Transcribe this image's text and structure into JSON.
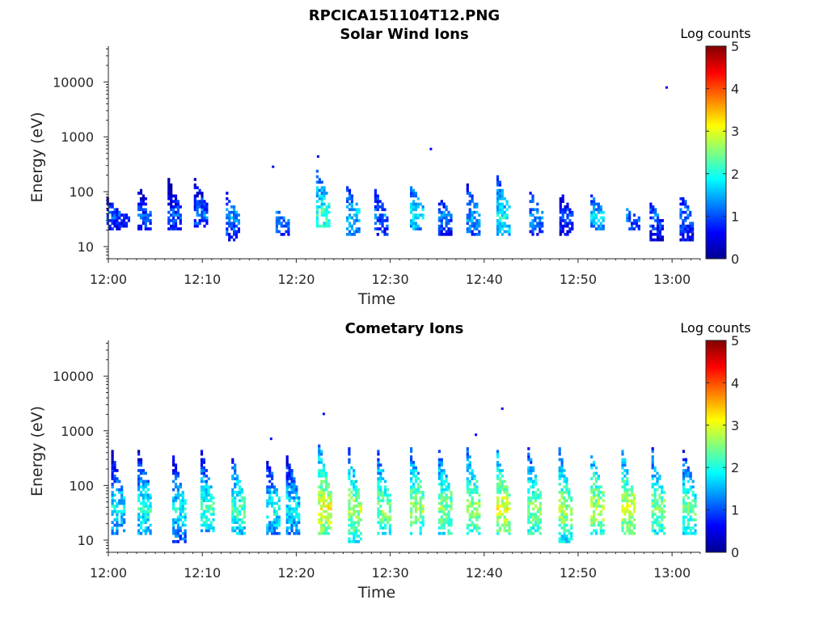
{
  "figure": {
    "title": "RPCICA151104T12.PNG"
  },
  "chart_data": [
    {
      "type": "heatmap",
      "title": "Solar Wind Ions",
      "xlabel": "Time",
      "ylabel": "Energy (eV)",
      "xlim": [
        "12:00",
        "13:03"
      ],
      "ylim": [
        6,
        45000
      ],
      "yscale": "log",
      "xticks": [
        "12:00",
        "12:10",
        "12:20",
        "12:30",
        "12:40",
        "12:50",
        "13:00"
      ],
      "yticks": [
        "10",
        "100",
        "1000",
        "10000"
      ],
      "colorbar": {
        "label": "Log counts",
        "min": 0,
        "max": 5,
        "ticks": [
          "0",
          "1",
          "2",
          "3",
          "4",
          "5"
        ]
      },
      "bursts": [
        {
          "t": 0.5,
          "e_low": 18,
          "e_high": 75,
          "peak": 1.5
        },
        {
          "t": 1.5,
          "e_low": 20,
          "e_high": 45,
          "peak": 1.3
        },
        {
          "t": 3.8,
          "e_low": 18,
          "e_high": 120,
          "peak": 1.4
        },
        {
          "t": 7.0,
          "e_low": 18,
          "e_high": 170,
          "peak": 1.4
        },
        {
          "t": 9.8,
          "e_low": 20,
          "e_high": 160,
          "peak": 1.6
        },
        {
          "t": 13.2,
          "e_low": 12,
          "e_high": 95,
          "peak": 1.8
        },
        {
          "t": 18.5,
          "e_low": 15,
          "e_high": 45,
          "peak": 1.7
        },
        {
          "t": 22.8,
          "e_low": 20,
          "e_high": 230,
          "peak": 2.6
        },
        {
          "t": 26.0,
          "e_low": 15,
          "e_high": 140,
          "peak": 2.0
        },
        {
          "t": 29.0,
          "e_low": 15,
          "e_high": 100,
          "peak": 1.6
        },
        {
          "t": 32.8,
          "e_low": 18,
          "e_high": 130,
          "peak": 2.2
        },
        {
          "t": 35.8,
          "e_low": 15,
          "e_high": 80,
          "peak": 1.6
        },
        {
          "t": 38.8,
          "e_low": 15,
          "e_high": 130,
          "peak": 1.9
        },
        {
          "t": 42.0,
          "e_low": 15,
          "e_high": 180,
          "peak": 2.3
        },
        {
          "t": 45.5,
          "e_low": 15,
          "e_high": 95,
          "peak": 1.7
        },
        {
          "t": 48.7,
          "e_low": 15,
          "e_high": 95,
          "peak": 1.4
        },
        {
          "t": 52.0,
          "e_low": 18,
          "e_high": 90,
          "peak": 2.0
        },
        {
          "t": 55.8,
          "e_low": 18,
          "e_high": 45,
          "peak": 1.6
        },
        {
          "t": 58.3,
          "e_low": 12,
          "e_high": 60,
          "peak": 1.5
        },
        {
          "t": 61.5,
          "e_low": 12,
          "e_high": 95,
          "peak": 1.6
        }
      ],
      "isolated": [
        {
          "t": 17.4,
          "e": 280,
          "value": 0.6
        },
        {
          "t": 22.2,
          "e": 430,
          "value": 0.5
        },
        {
          "t": 34.2,
          "e": 590,
          "value": 0.6
        },
        {
          "t": 59.3,
          "e": 7800,
          "value": 0.5
        }
      ]
    },
    {
      "type": "heatmap",
      "title": "Cometary Ions",
      "xlabel": "Time",
      "ylabel": "Energy (eV)",
      "xlim": [
        "12:00",
        "13:03"
      ],
      "ylim": [
        6,
        45000
      ],
      "yscale": "log",
      "xticks": [
        "12:00",
        "12:10",
        "12:20",
        "12:30",
        "12:40",
        "12:50",
        "13:00"
      ],
      "yticks": [
        "10",
        "100",
        "1000",
        "10000"
      ],
      "colorbar": {
        "label": "Log counts",
        "min": 0,
        "max": 5,
        "ticks": [
          "0",
          "1",
          "2",
          "3",
          "4",
          "5"
        ]
      },
      "bursts": [
        {
          "t": 1.0,
          "e_low": 12,
          "e_high": 400,
          "peak": 2.3
        },
        {
          "t": 3.8,
          "e_low": 12,
          "e_high": 500,
          "peak": 2.5
        },
        {
          "t": 7.5,
          "e_low": 8,
          "e_high": 350,
          "peak": 2.3
        },
        {
          "t": 10.5,
          "e_low": 12,
          "e_high": 400,
          "peak": 2.6
        },
        {
          "t": 13.8,
          "e_low": 12,
          "e_high": 350,
          "peak": 2.7
        },
        {
          "t": 17.5,
          "e_low": 12,
          "e_high": 300,
          "peak": 2.4
        },
        {
          "t": 19.6,
          "e_low": 12,
          "e_high": 350,
          "peak": 2.3
        },
        {
          "t": 23.0,
          "e_low": 12,
          "e_high": 600,
          "peak": 3.5
        },
        {
          "t": 26.2,
          "e_low": 8,
          "e_high": 450,
          "peak": 3.1
        },
        {
          "t": 29.3,
          "e_low": 12,
          "e_high": 400,
          "peak": 3.0
        },
        {
          "t": 32.8,
          "e_low": 12,
          "e_high": 500,
          "peak": 3.1
        },
        {
          "t": 35.8,
          "e_low": 12,
          "e_high": 450,
          "peak": 3.0
        },
        {
          "t": 38.8,
          "e_low": 12,
          "e_high": 500,
          "peak": 3.1
        },
        {
          "t": 42.0,
          "e_low": 12,
          "e_high": 400,
          "peak": 3.4
        },
        {
          "t": 45.3,
          "e_low": 12,
          "e_high": 450,
          "peak": 3.0
        },
        {
          "t": 48.6,
          "e_low": 8,
          "e_high": 450,
          "peak": 3.1
        },
        {
          "t": 52.0,
          "e_low": 12,
          "e_high": 450,
          "peak": 3.2
        },
        {
          "t": 55.3,
          "e_low": 12,
          "e_high": 400,
          "peak": 3.3
        },
        {
          "t": 58.5,
          "e_low": 12,
          "e_high": 450,
          "peak": 3.0
        },
        {
          "t": 61.8,
          "e_low": 12,
          "e_high": 500,
          "peak": 2.8
        }
      ],
      "isolated": [
        {
          "t": 22.8,
          "e": 2000,
          "value": 0.5
        },
        {
          "t": 41.8,
          "e": 2500,
          "value": 0.5
        },
        {
          "t": 17.2,
          "e": 700,
          "value": 0.6
        },
        {
          "t": 39.0,
          "e": 830,
          "value": 0.6
        }
      ]
    }
  ]
}
